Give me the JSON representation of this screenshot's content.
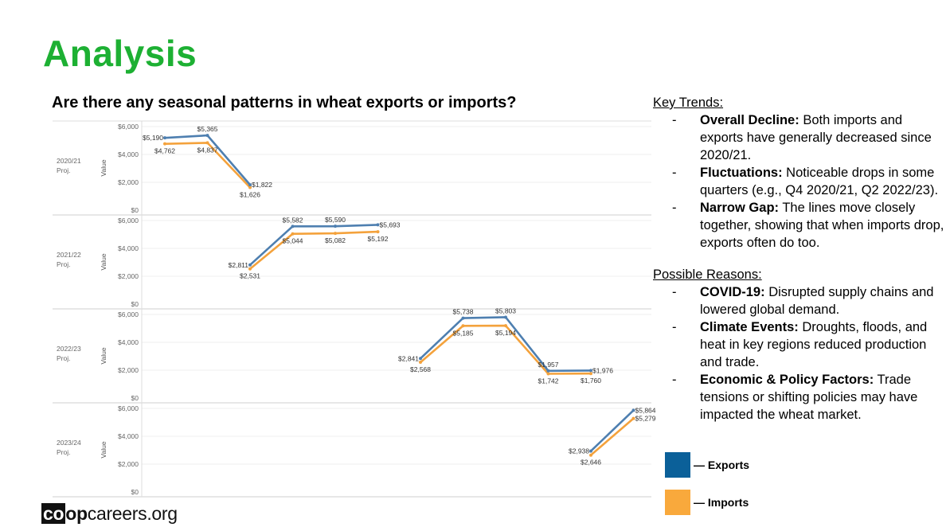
{
  "slide": {
    "title": "Analysis",
    "chart_heading": "Are there any seasonal patterns in wheat exports or imports?"
  },
  "notes": {
    "key_trends_heading": "Key Trends:",
    "key_trends": [
      {
        "dash": "-",
        "bold": "Overall Decline:",
        "text": " Both imports and exports have generally decreased since 2020/21."
      },
      {
        "dash": "-",
        "bold": "Fluctuations:",
        "text": " Noticeable drops in some quarters (e.g., Q4 2020/21, Q2 2022/23)."
      },
      {
        "dash": "-",
        "bold": "Narrow Gap:",
        "text": " The lines move closely together, showing that when imports drop, exports often do too."
      }
    ],
    "reasons_heading": "Possible Reasons:",
    "reasons": [
      {
        "dash": "-",
        "bold": "COVID-19:",
        "text": " Disrupted supply chains and lowered global demand."
      },
      {
        "dash": "-",
        "bold": "Climate Events:",
        "text": " Droughts, floods, and heat in key regions reduced production and trade."
      },
      {
        "dash": "-",
        "bold": "Economic & Policy Factors:",
        "text": " Trade tensions or shifting policies may have impacted the wheat market."
      }
    ]
  },
  "legend": {
    "exports": {
      "label": "— Exports",
      "color": "#0b6099"
    },
    "imports": {
      "label": "— Imports",
      "color": "#f9a93c"
    }
  },
  "logo": {
    "co": "co",
    "op": "op",
    "rest": "careers.org"
  },
  "chart_data": {
    "type": "line",
    "y_axis_label": "Value",
    "ylim": [
      0,
      6000
    ],
    "y_ticks": [
      "$0",
      "$2,000",
      "$4,000",
      "$6,000"
    ],
    "x_slots": 12,
    "grid": true,
    "colors": {
      "exports": "#4e7fb0",
      "imports": "#f4a23c"
    },
    "panels": [
      {
        "label_line1": "2020/21",
        "label_line2": "Proj.",
        "exports": [
          {
            "x": 0,
            "y": 5190,
            "label": "$5,190"
          },
          {
            "x": 1,
            "y": 5365,
            "label": "$5,365"
          },
          {
            "x": 2,
            "y": 1822,
            "label": "$1,822"
          }
        ],
        "imports": [
          {
            "x": 0,
            "y": 4762,
            "label": "$4,762"
          },
          {
            "x": 1,
            "y": 4837,
            "label": "$4,837"
          },
          {
            "x": 2,
            "y": 1626,
            "label": "$1,626"
          }
        ]
      },
      {
        "label_line1": "2021/22",
        "label_line2": "Proj.",
        "exports": [
          {
            "x": 2,
            "y": 2811,
            "label": "$2,811"
          },
          {
            "x": 3,
            "y": 5582,
            "label": "$5,582"
          },
          {
            "x": 4,
            "y": 5590,
            "label": "$5,590"
          },
          {
            "x": 5,
            "y": 5693,
            "label": "$5,693"
          }
        ],
        "imports": [
          {
            "x": 2,
            "y": 2531,
            "label": "$2,531"
          },
          {
            "x": 3,
            "y": 5044,
            "label": "$5,044"
          },
          {
            "x": 4,
            "y": 5082,
            "label": "$5,082"
          },
          {
            "x": 5,
            "y": 5192,
            "label": "$5,192"
          }
        ]
      },
      {
        "label_line1": "2022/23",
        "label_line2": "Proj.",
        "exports": [
          {
            "x": 6,
            "y": 2841,
            "label": "$2,841"
          },
          {
            "x": 7,
            "y": 5738,
            "label": "$5,738"
          },
          {
            "x": 8,
            "y": 5803,
            "label": "$5,803"
          },
          {
            "x": 9,
            "y": 1957,
            "label": "$1,957"
          },
          {
            "x": 10,
            "y": 1976,
            "label": "$1,976"
          }
        ],
        "imports": [
          {
            "x": 6,
            "y": 2568,
            "label": "$2,568"
          },
          {
            "x": 7,
            "y": 5185,
            "label": "$5,185"
          },
          {
            "x": 8,
            "y": 5194,
            "label": "$5,194"
          },
          {
            "x": 9,
            "y": 1742,
            "label": "$1,742"
          },
          {
            "x": 10,
            "y": 1760,
            "label": "$1,760"
          }
        ]
      },
      {
        "label_line1": "2023/24",
        "label_line2": "Proj.",
        "exports": [
          {
            "x": 10,
            "y": 2938,
            "label": "$2,938"
          },
          {
            "x": 11,
            "y": 5864,
            "label": "$5,864"
          }
        ],
        "imports": [
          {
            "x": 10,
            "y": 2646,
            "label": "$2,646"
          },
          {
            "x": 11,
            "y": 5279,
            "label": "$5,279"
          }
        ]
      }
    ]
  }
}
